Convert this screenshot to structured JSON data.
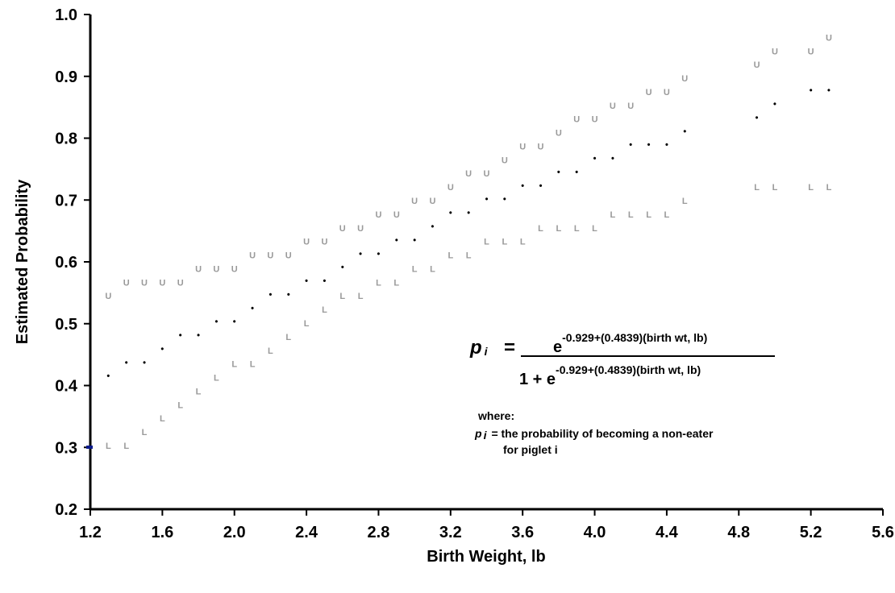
{
  "chart_data": {
    "type": "scatter",
    "xlabel": "Birth Weight, lb",
    "ylabel": "Estimated Probability",
    "xlim": [
      1.2,
      5.6
    ],
    "ylim": [
      0.2,
      1.0
    ],
    "x_ticks": [
      "1.2",
      "1.6",
      "2.0",
      "2.4",
      "2.8",
      "3.2",
      "3.6",
      "4.0",
      "4.4",
      "4.8",
      "5.2",
      "5.6"
    ],
    "y_ticks": [
      "0.2",
      "0.3",
      "0.4",
      "0.5",
      "0.6",
      "0.7",
      "0.8",
      "0.9",
      "1.0"
    ],
    "grid": false,
    "legend": "none",
    "colors": {
      "upper": "#9a9a9a",
      "estimate": "#000000",
      "lower": "#9a9a9a",
      "axis": "#000000",
      "origin_marker": "#0a1a8c"
    },
    "series": [
      {
        "marker": "U",
        "x": [
          1.3,
          1.4,
          1.5,
          1.6,
          1.7,
          1.8,
          1.9,
          2.0,
          2.1,
          2.2,
          2.3,
          2.4,
          2.5,
          2.6,
          2.7,
          2.8,
          2.9,
          3.0,
          3.1,
          3.2,
          3.3,
          3.4,
          3.5,
          3.6,
          3.7,
          3.8,
          3.9,
          4.0,
          4.1,
          4.2,
          4.3,
          4.4,
          4.5,
          4.9,
          5.0,
          5.2,
          5.3
        ],
        "y": [
          0.545,
          0.567,
          0.567,
          0.567,
          0.567,
          0.589,
          0.589,
          0.589,
          0.611,
          0.611,
          0.611,
          0.633,
          0.633,
          0.655,
          0.655,
          0.677,
          0.677,
          0.699,
          0.699,
          0.721,
          0.743,
          0.743,
          0.765,
          0.787,
          0.787,
          0.809,
          0.831,
          0.831,
          0.853,
          0.853,
          0.875,
          0.875,
          0.897,
          0.919,
          0.941,
          0.941,
          0.963
        ]
      },
      {
        "marker": "•",
        "x": [
          1.3,
          1.4,
          1.5,
          1.6,
          1.7,
          1.8,
          1.9,
          2.0,
          2.1,
          2.2,
          2.3,
          2.4,
          2.5,
          2.6,
          2.7,
          2.8,
          2.9,
          3.0,
          3.1,
          3.2,
          3.3,
          3.4,
          3.5,
          3.6,
          3.7,
          3.8,
          3.9,
          4.0,
          4.1,
          4.2,
          4.3,
          4.4,
          4.5,
          4.9,
          5.0,
          5.2,
          5.3
        ],
        "y": [
          0.416,
          0.438,
          0.438,
          0.46,
          0.482,
          0.482,
          0.504,
          0.504,
          0.526,
          0.548,
          0.548,
          0.57,
          0.57,
          0.592,
          0.614,
          0.614,
          0.636,
          0.636,
          0.658,
          0.68,
          0.68,
          0.702,
          0.702,
          0.724,
          0.724,
          0.746,
          0.746,
          0.768,
          0.768,
          0.79,
          0.79,
          0.79,
          0.812,
          0.834,
          0.856,
          0.878,
          0.878
        ]
      },
      {
        "marker": "L",
        "x": [
          1.3,
          1.4,
          1.5,
          1.6,
          1.7,
          1.8,
          1.9,
          2.0,
          2.1,
          2.2,
          2.3,
          2.4,
          2.5,
          2.6,
          2.7,
          2.8,
          2.9,
          3.0,
          3.1,
          3.2,
          3.3,
          3.4,
          3.5,
          3.6,
          3.7,
          3.8,
          3.9,
          4.0,
          4.1,
          4.2,
          4.3,
          4.4,
          4.5,
          4.9,
          5.0,
          5.2,
          5.3
        ],
        "y": [
          0.303,
          0.303,
          0.325,
          0.347,
          0.369,
          0.391,
          0.413,
          0.435,
          0.435,
          0.457,
          0.479,
          0.501,
          0.523,
          0.545,
          0.545,
          0.567,
          0.567,
          0.589,
          0.589,
          0.611,
          0.611,
          0.633,
          0.633,
          0.633,
          0.655,
          0.655,
          0.655,
          0.655,
          0.677,
          0.677,
          0.677,
          0.677,
          0.699,
          0.721,
          0.721,
          0.721,
          0.721
        ]
      }
    ],
    "annotations": {
      "formula_lhs_p": "p",
      "formula_lhs_sub": "i",
      "formula_equals": "=",
      "formula_numerator_base": "e",
      "formula_exponent": "-0.929+(0.4839)(birth wt, lb)",
      "formula_denominator_prefix": "1 + e",
      "where_label": "where:",
      "def_p": "p",
      "def_sub": "i",
      "def_text_line1": "= the probability of becoming a non-eater",
      "def_text_line2": "for  piglet i"
    }
  }
}
